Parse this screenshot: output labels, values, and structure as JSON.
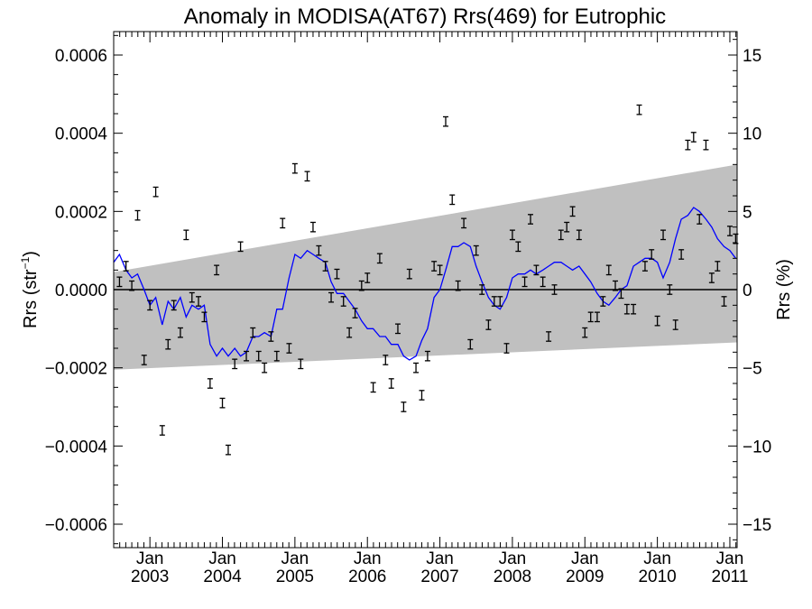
{
  "chart_data": {
    "type": "scatter",
    "title": "Anomaly in MODISA(AT67) Rrs(469) for Eutrophic",
    "ylabel_left": "Rrs (str⁻¹)",
    "ylabel_left_main": "Rrs (str",
    "ylabel_left_sup": "−1",
    "ylabel_left_close": ")",
    "ylabel_right": "Rrs (%)",
    "xlim": [
      2002.5,
      2011.1
    ],
    "ylim_left": [
      -0.00066,
      0.00066
    ],
    "ylim_right": [
      -16.5,
      16.5
    ],
    "left_ticks": [
      "0.0006",
      "0.0004",
      "0.0002",
      "0.0000",
      "−0.0002",
      "−0.0004",
      "−0.0006"
    ],
    "left_tick_values": [
      0.0006,
      0.0004,
      0.0002,
      0.0,
      -0.0002,
      -0.0004,
      -0.0006
    ],
    "right_ticks": [
      "15",
      "10",
      "5",
      "0",
      "−5",
      "−10",
      "−15"
    ],
    "right_tick_values": [
      15,
      10,
      5,
      0,
      -5,
      -10,
      -15
    ],
    "x_ticks": [
      {
        "month": "Jan",
        "year": "2003",
        "x": 2003.0
      },
      {
        "month": "Jan",
        "year": "2004",
        "x": 2004.0
      },
      {
        "month": "Jan",
        "year": "2005",
        "x": 2005.0
      },
      {
        "month": "Jan",
        "year": "2006",
        "x": 2006.0
      },
      {
        "month": "Jan",
        "year": "2007",
        "x": 2007.0
      },
      {
        "month": "Jan",
        "year": "2008",
        "x": 2008.0
      },
      {
        "month": "Jan",
        "year": "2009",
        "x": 2009.0
      },
      {
        "month": "Jan",
        "year": "2010",
        "x": 2010.0
      },
      {
        "month": "Jan",
        "year": "2011",
        "x": 2011.0
      }
    ],
    "band": {
      "color": "#c0c0c0",
      "upper": [
        [
          2002.5,
          4.5e-05
        ],
        [
          2011.1,
          0.00032
        ]
      ],
      "lower": [
        [
          2002.5,
          -0.000205
        ],
        [
          2011.1,
          -0.000135
        ]
      ]
    },
    "zero_line": 0,
    "error_bar_halfwidth": 1.2e-05,
    "points_color": "#000000",
    "points": [
      [
        2002.58,
        2e-05
      ],
      [
        2002.67,
        6e-05
      ],
      [
        2002.75,
        1e-05
      ],
      [
        2002.83,
        0.00019
      ],
      [
        2002.92,
        -0.00018
      ],
      [
        2003.0,
        -4e-05
      ],
      [
        2003.08,
        0.00025
      ],
      [
        2003.17,
        -0.00036
      ],
      [
        2003.25,
        -0.00014
      ],
      [
        2003.33,
        -4e-05
      ],
      [
        2003.42,
        -0.00011
      ],
      [
        2003.5,
        0.00014
      ],
      [
        2003.58,
        -2e-05
      ],
      [
        2003.67,
        -3e-05
      ],
      [
        2003.75,
        -7e-05
      ],
      [
        2003.83,
        -0.00024
      ],
      [
        2003.92,
        5e-05
      ],
      [
        2004.0,
        -0.00029
      ],
      [
        2004.08,
        -0.00041
      ],
      [
        2004.17,
        -0.00019
      ],
      [
        2004.25,
        0.00011
      ],
      [
        2004.33,
        -0.00017
      ],
      [
        2004.42,
        -0.00011
      ],
      [
        2004.5,
        -0.00017
      ],
      [
        2004.58,
        -0.0002
      ],
      [
        2004.67,
        -0.00012
      ],
      [
        2004.75,
        -0.00017
      ],
      [
        2004.83,
        0.00017
      ],
      [
        2004.92,
        -0.00015
      ],
      [
        2005.0,
        0.00031
      ],
      [
        2005.08,
        -0.00019
      ],
      [
        2005.17,
        0.00029
      ],
      [
        2005.25,
        0.00016
      ],
      [
        2005.33,
        0.0001
      ],
      [
        2005.42,
        6e-05
      ],
      [
        2005.5,
        -2e-05
      ],
      [
        2005.58,
        4e-05
      ],
      [
        2005.67,
        -3e-05
      ],
      [
        2005.75,
        -0.00011
      ],
      [
        2005.83,
        -6e-05
      ],
      [
        2005.92,
        1e-05
      ],
      [
        2006.0,
        3e-05
      ],
      [
        2006.08,
        -0.00025
      ],
      [
        2006.17,
        8e-05
      ],
      [
        2006.25,
        -0.00018
      ],
      [
        2006.33,
        -0.00024
      ],
      [
        2006.42,
        -0.0001
      ],
      [
        2006.5,
        -0.0003
      ],
      [
        2006.58,
        4e-05
      ],
      [
        2006.67,
        -0.0002
      ],
      [
        2006.75,
        -0.00027
      ],
      [
        2006.83,
        -0.00017
      ],
      [
        2006.92,
        6e-05
      ],
      [
        2007.0,
        5e-05
      ],
      [
        2007.08,
        0.00043
      ],
      [
        2007.17,
        0.00023
      ],
      [
        2007.25,
        1e-05
      ],
      [
        2007.33,
        0.00017
      ],
      [
        2007.42,
        -0.00014
      ],
      [
        2007.5,
        0.0001
      ],
      [
        2007.58,
        0.0
      ],
      [
        2007.67,
        -9e-05
      ],
      [
        2007.75,
        -3e-05
      ],
      [
        2007.83,
        -3e-05
      ],
      [
        2007.92,
        -0.00015
      ],
      [
        2008.0,
        0.00014
      ],
      [
        2008.08,
        0.00011
      ],
      [
        2008.17,
        2e-05
      ],
      [
        2008.25,
        0.00018
      ],
      [
        2008.33,
        5e-05
      ],
      [
        2008.42,
        2e-05
      ],
      [
        2008.5,
        -0.00012
      ],
      [
        2008.58,
        0.0
      ],
      [
        2008.67,
        0.00014
      ],
      [
        2008.75,
        0.00016
      ],
      [
        2008.83,
        0.0002
      ],
      [
        2008.92,
        0.00014
      ],
      [
        2009.0,
        -0.00011
      ],
      [
        2009.08,
        -7e-05
      ],
      [
        2009.17,
        -7e-05
      ],
      [
        2009.25,
        -3e-05
      ],
      [
        2009.33,
        5e-05
      ],
      [
        2009.42,
        1e-05
      ],
      [
        2009.5,
        -1e-05
      ],
      [
        2009.58,
        -5e-05
      ],
      [
        2009.67,
        -5e-05
      ],
      [
        2009.75,
        0.00046
      ],
      [
        2009.83,
        6e-05
      ],
      [
        2009.92,
        9e-05
      ],
      [
        2010.0,
        -8e-05
      ],
      [
        2010.08,
        0.00014
      ],
      [
        2010.17,
        0.0
      ],
      [
        2010.25,
        -9e-05
      ],
      [
        2010.33,
        9e-05
      ],
      [
        2010.42,
        0.00037
      ],
      [
        2010.5,
        0.00039
      ],
      [
        2010.58,
        0.00018
      ],
      [
        2010.67,
        0.00037
      ],
      [
        2010.75,
        3e-05
      ],
      [
        2010.83,
        6e-05
      ],
      [
        2010.92,
        -3e-05
      ],
      [
        2011.0,
        0.00015
      ],
      [
        2011.08,
        0.00013
      ]
    ],
    "line_color": "#0000ff",
    "line": [
      [
        2002.5,
        7e-05
      ],
      [
        2002.58,
        9e-05
      ],
      [
        2002.67,
        5e-05
      ],
      [
        2002.75,
        3e-05
      ],
      [
        2002.83,
        4e-05
      ],
      [
        2002.92,
        0.0
      ],
      [
        2003.0,
        -4e-05
      ],
      [
        2003.08,
        -2e-05
      ],
      [
        2003.17,
        -9e-05
      ],
      [
        2003.25,
        -3e-05
      ],
      [
        2003.33,
        -5e-05
      ],
      [
        2003.42,
        -2e-05
      ],
      [
        2003.5,
        -7e-05
      ],
      [
        2003.58,
        -4e-05
      ],
      [
        2003.67,
        -5e-05
      ],
      [
        2003.75,
        -4e-05
      ],
      [
        2003.83,
        -0.00014
      ],
      [
        2003.92,
        -0.00017
      ],
      [
        2004.0,
        -0.00015
      ],
      [
        2004.08,
        -0.00017
      ],
      [
        2004.17,
        -0.00015
      ],
      [
        2004.25,
        -0.00017
      ],
      [
        2004.33,
        -0.00016
      ],
      [
        2004.42,
        -0.00012
      ],
      [
        2004.5,
        -0.00012
      ],
      [
        2004.58,
        -0.00011
      ],
      [
        2004.67,
        -0.00012
      ],
      [
        2004.75,
        -5e-05
      ],
      [
        2004.83,
        -5e-05
      ],
      [
        2004.92,
        3e-05
      ],
      [
        2005.0,
        9e-05
      ],
      [
        2005.08,
        8e-05
      ],
      [
        2005.17,
        0.0001
      ],
      [
        2005.25,
        9e-05
      ],
      [
        2005.33,
        8e-05
      ],
      [
        2005.42,
        7e-05
      ],
      [
        2005.5,
        2e-05
      ],
      [
        2005.58,
        -1e-05
      ],
      [
        2005.67,
        -1e-05
      ],
      [
        2005.75,
        -3e-05
      ],
      [
        2005.83,
        -5e-05
      ],
      [
        2005.92,
        -8e-05
      ],
      [
        2006.0,
        -0.0001
      ],
      [
        2006.08,
        -0.0001
      ],
      [
        2006.17,
        -0.00012
      ],
      [
        2006.25,
        -0.00012
      ],
      [
        2006.33,
        -0.00014
      ],
      [
        2006.42,
        -0.00014
      ],
      [
        2006.5,
        -0.00017
      ],
      [
        2006.58,
        -0.00018
      ],
      [
        2006.67,
        -0.00017
      ],
      [
        2006.75,
        -0.00013
      ],
      [
        2006.83,
        -0.0001
      ],
      [
        2006.92,
        -2e-05
      ],
      [
        2007.0,
        0.0
      ],
      [
        2007.08,
        5e-05
      ],
      [
        2007.17,
        0.00011
      ],
      [
        2007.25,
        0.00011
      ],
      [
        2007.33,
        0.00012
      ],
      [
        2007.42,
        0.00011
      ],
      [
        2007.5,
        6e-05
      ],
      [
        2007.58,
        2e-05
      ],
      [
        2007.67,
        -2e-05
      ],
      [
        2007.75,
        -4e-05
      ],
      [
        2007.83,
        -5e-05
      ],
      [
        2007.92,
        -2e-05
      ],
      [
        2008.0,
        3e-05
      ],
      [
        2008.08,
        4e-05
      ],
      [
        2008.17,
        4e-05
      ],
      [
        2008.25,
        5e-05
      ],
      [
        2008.33,
        4e-05
      ],
      [
        2008.42,
        5e-05
      ],
      [
        2008.5,
        6e-05
      ],
      [
        2008.58,
        7e-05
      ],
      [
        2008.67,
        7e-05
      ],
      [
        2008.75,
        6e-05
      ],
      [
        2008.83,
        5e-05
      ],
      [
        2008.92,
        6e-05
      ],
      [
        2009.0,
        4e-05
      ],
      [
        2009.08,
        2e-05
      ],
      [
        2009.17,
        -1e-05
      ],
      [
        2009.25,
        -3e-05
      ],
      [
        2009.33,
        -4e-05
      ],
      [
        2009.42,
        -2e-05
      ],
      [
        2009.5,
        0.0
      ],
      [
        2009.58,
        1e-05
      ],
      [
        2009.67,
        6e-05
      ],
      [
        2009.75,
        7e-05
      ],
      [
        2009.83,
        8e-05
      ],
      [
        2009.92,
        8e-05
      ],
      [
        2010.0,
        7e-05
      ],
      [
        2010.08,
        3e-05
      ],
      [
        2010.17,
        7e-05
      ],
      [
        2010.25,
        0.00013
      ],
      [
        2010.33,
        0.00018
      ],
      [
        2010.42,
        0.00019
      ],
      [
        2010.5,
        0.00021
      ],
      [
        2010.58,
        0.0002
      ],
      [
        2010.67,
        0.00018
      ],
      [
        2010.75,
        0.00016
      ],
      [
        2010.83,
        0.00013
      ],
      [
        2010.92,
        0.00011
      ],
      [
        2011.0,
        0.0001
      ],
      [
        2011.08,
        8e-05
      ]
    ]
  }
}
